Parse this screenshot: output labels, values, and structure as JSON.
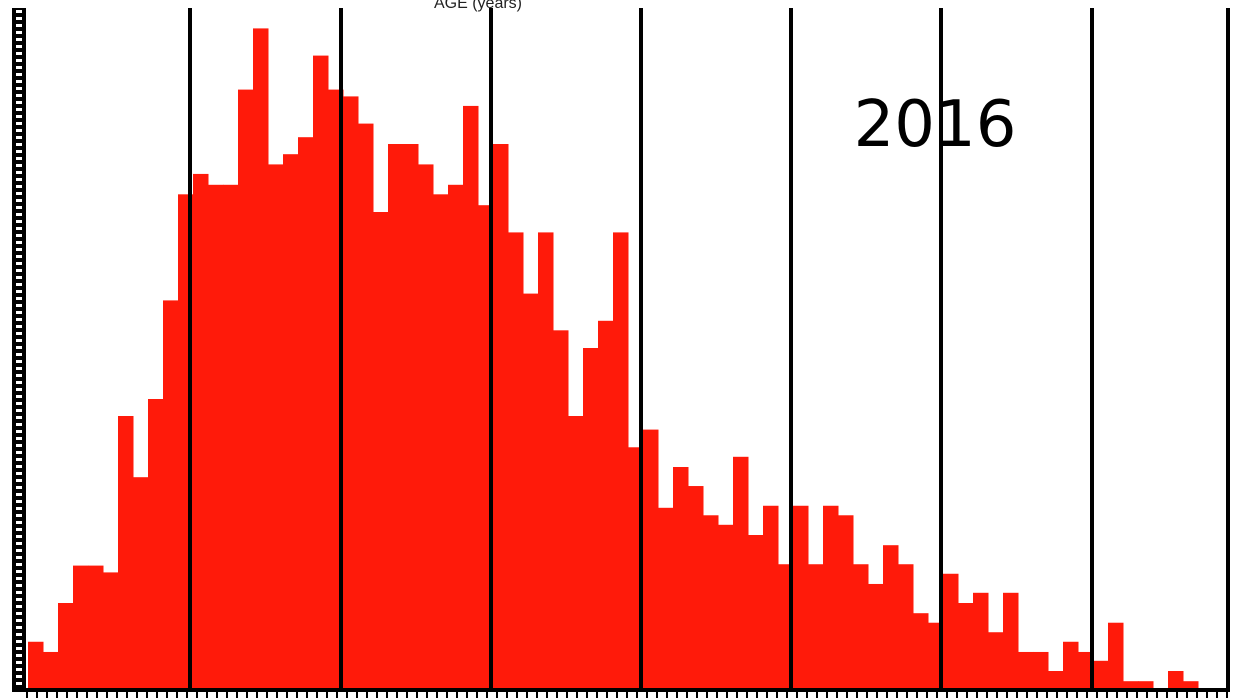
{
  "chart_data": {
    "type": "bar",
    "title": "AGE (years)",
    "annotation": "2016",
    "color": "#ff1a0a",
    "values": [
      6.8,
      5.3,
      12.5,
      18,
      18,
      17,
      40,
      31,
      42.5,
      57,
      72.6,
      75.6,
      74,
      74,
      88,
      97,
      77,
      78.5,
      81,
      93,
      88,
      87,
      83,
      70,
      80,
      80,
      77,
      72.6,
      74,
      85.6,
      71,
      80,
      67,
      58,
      67,
      52.6,
      40,
      50,
      54,
      67,
      35.4,
      38,
      26.5,
      32.5,
      29.7,
      25.4,
      24,
      34,
      22.5,
      26.8,
      18.2,
      26.8,
      18.2,
      26.8,
      25.4,
      18.2,
      15.3,
      21,
      18.2,
      11,
      9.6,
      16.8,
      12.5,
      14,
      8.2,
      14,
      5.3,
      5.3,
      2.5,
      6.8,
      5.3,
      4,
      9.6,
      1,
      1,
      0,
      2.5,
      1
    ],
    "ylim": [
      0,
      100
    ]
  }
}
